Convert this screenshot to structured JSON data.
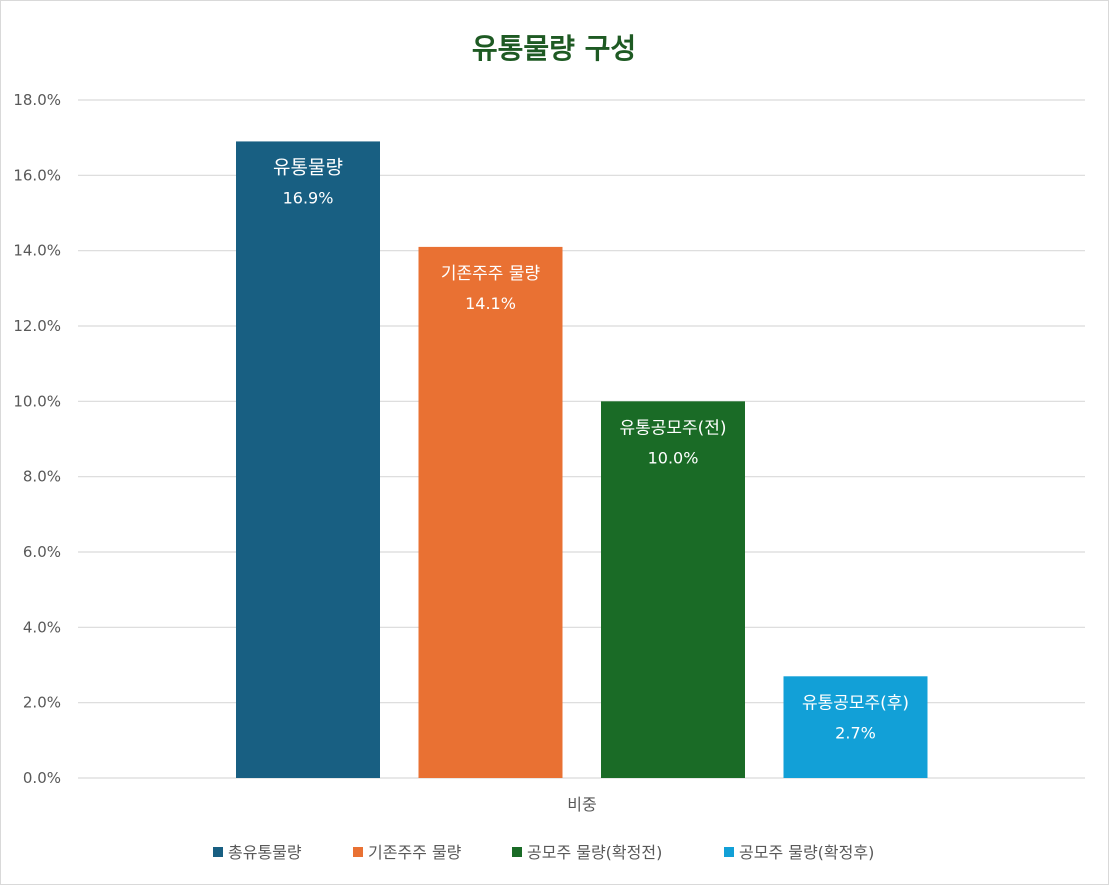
{
  "chart_data": {
    "type": "bar",
    "title": "유통물량 구성",
    "title_color": "#1e5a23",
    "xlabel": "",
    "ylabel": "",
    "categories": [
      "비중"
    ],
    "ylim": [
      0,
      18
    ],
    "ytick_step": 2,
    "ytick_labels": [
      "0.0%",
      "2.0%",
      "4.0%",
      "6.0%",
      "8.0%",
      "10.0%",
      "12.0%",
      "14.0%",
      "16.0%",
      "18.0%"
    ],
    "grid": true,
    "legend_position": "bottom",
    "series": [
      {
        "name": "총유통물량",
        "value": 16.9,
        "label_name": "유통물량",
        "label_value": "16.9%",
        "color": "#185f82"
      },
      {
        "name": "기존주주 물량",
        "value": 14.1,
        "label_name": "기존주주 물량",
        "label_value": "14.1%",
        "color": "#e97133"
      },
      {
        "name": "공모주 물량(확정전)",
        "value": 10.0,
        "label_name": "유통공모주(전)",
        "label_value": "10.0%",
        "color": "#1a6b26"
      },
      {
        "name": "공모주 물량(확정후)",
        "value": 2.7,
        "label_name": "유통공모주(후)",
        "label_value": "2.7%",
        "color": "#12a0d7"
      }
    ]
  }
}
